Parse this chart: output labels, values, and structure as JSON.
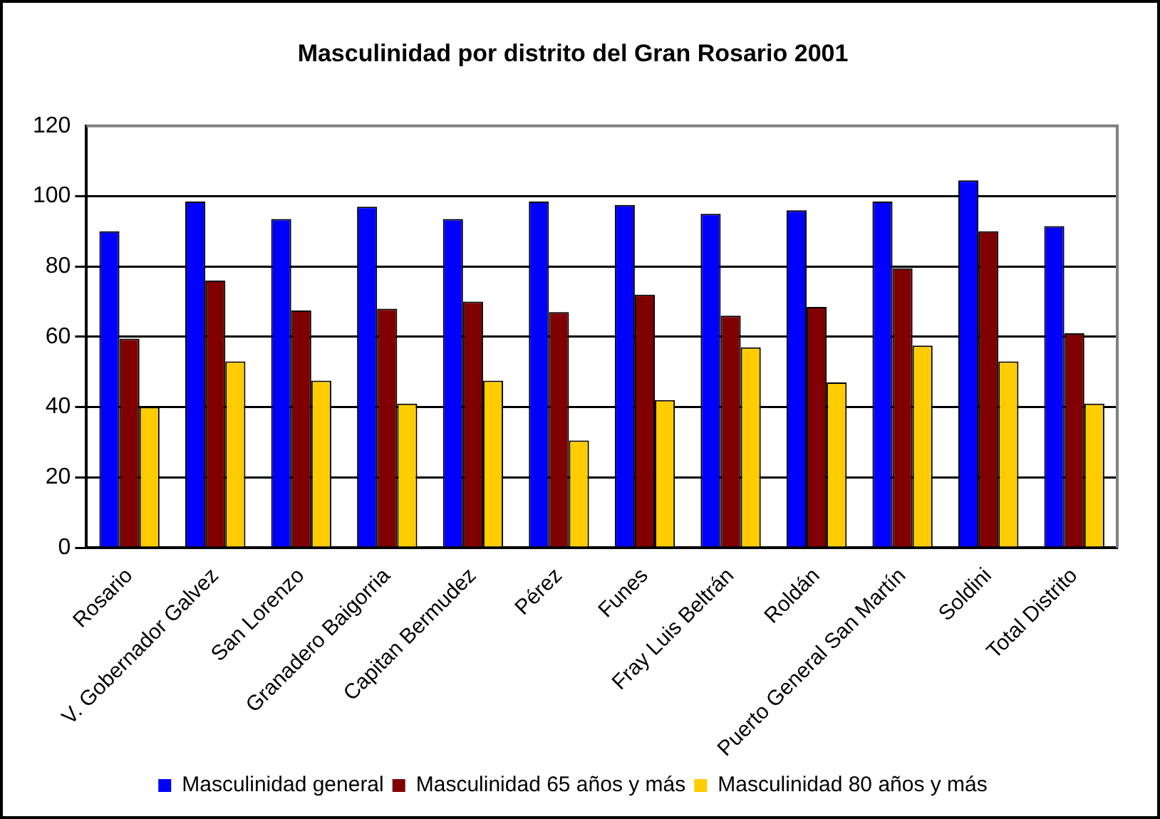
{
  "chart_data": {
    "type": "bar",
    "title": "Masculinidad por distrito del Gran Rosario 2001",
    "categories": [
      "Rosario",
      "V. Gobernador Galvez",
      "San Lorenzo",
      "Granadero Baigorria",
      "Capitan Bermudez",
      "Pérez",
      "Funes",
      "Fray Luis Beltrán",
      "Roldán",
      "Puerto General San Martín",
      "Soldini",
      "Total Distrito"
    ],
    "series": [
      {
        "name": "Masculinidad general",
        "color": "#0000ff",
        "values": [
          90,
          98.5,
          93.5,
          97,
          93.5,
          98.5,
          97.5,
          95,
          96,
          98.5,
          104.5,
          91.5
        ]
      },
      {
        "name": "Masculinidad 65 años y más",
        "color": "#800000",
        "values": [
          59.5,
          76,
          67.5,
          68,
          70,
          67,
          72,
          66,
          68.5,
          79.5,
          90,
          61
        ]
      },
      {
        "name": "Masculinidad 80 años y más",
        "color": "#ffcc00",
        "values": [
          40,
          53,
          47.5,
          41,
          47.5,
          30.5,
          42,
          57,
          47,
          57.5,
          53,
          41
        ]
      }
    ],
    "ylim": [
      0,
      120
    ],
    "yticks": [
      0,
      20,
      40,
      60,
      80,
      100,
      120
    ],
    "grid": "y",
    "legend": "bottom"
  }
}
